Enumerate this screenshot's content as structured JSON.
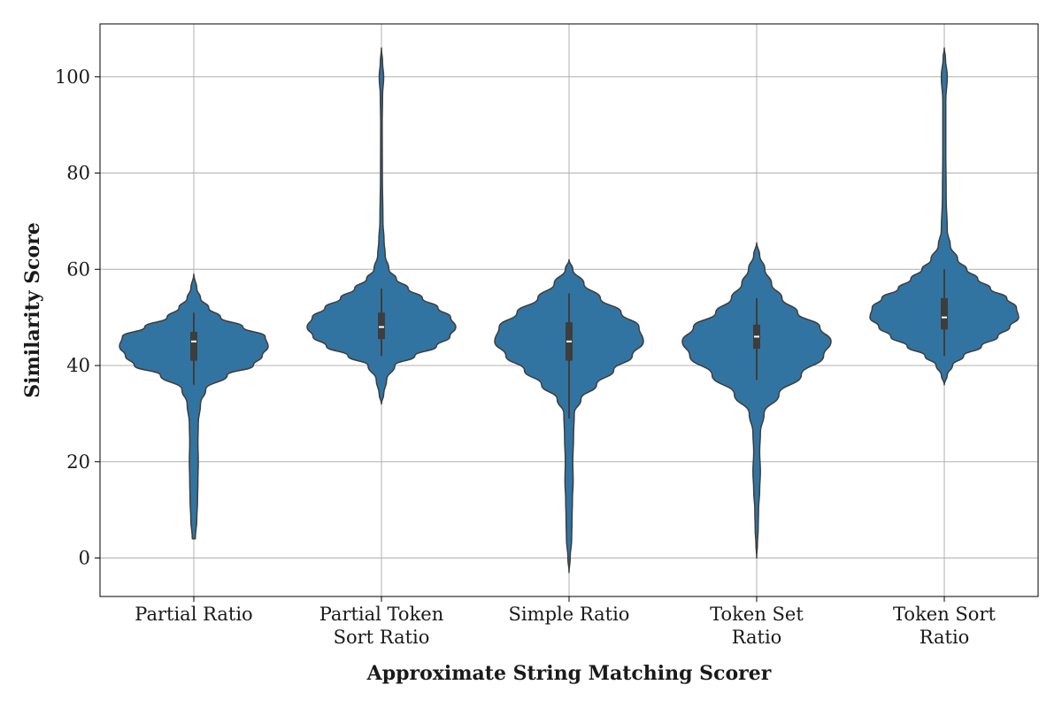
{
  "chart_data": {
    "type": "violin",
    "title": "",
    "xlabel": "Approximate String Matching Scorer",
    "ylabel": "Similarity Score",
    "ylim": [
      -8,
      111
    ],
    "yticks": [
      0,
      20,
      40,
      60,
      80,
      100
    ],
    "grid": true,
    "legend": "none",
    "color": "#3274a1",
    "categories": [
      {
        "label_lines": [
          "Partial Ratio"
        ],
        "median": 45,
        "q1": 41,
        "q3": 47,
        "whisker_low": 36,
        "whisker_high": 51,
        "density": [
          [
            4,
            0.02
          ],
          [
            8,
            0.04
          ],
          [
            12,
            0.05
          ],
          [
            16,
            0.055
          ],
          [
            20,
            0.06
          ],
          [
            24,
            0.055
          ],
          [
            28,
            0.06
          ],
          [
            32,
            0.09
          ],
          [
            35,
            0.16
          ],
          [
            38,
            0.45
          ],
          [
            40,
            0.8
          ],
          [
            42,
            0.92
          ],
          [
            44,
            1.0
          ],
          [
            46,
            0.96
          ],
          [
            48,
            0.66
          ],
          [
            50,
            0.36
          ],
          [
            52,
            0.2
          ],
          [
            54,
            0.09
          ],
          [
            56,
            0.04
          ],
          [
            59,
            0.0
          ]
        ]
      },
      {
        "label_lines": [
          "Partial Token",
          "Sort Ratio"
        ],
        "median": 48,
        "q1": 45.5,
        "q3": 51,
        "whisker_low": 42,
        "whisker_high": 56,
        "density": [
          [
            32,
            0.0
          ],
          [
            34,
            0.03
          ],
          [
            37,
            0.07
          ],
          [
            40,
            0.18
          ],
          [
            42,
            0.45
          ],
          [
            44,
            0.74
          ],
          [
            46,
            0.92
          ],
          [
            48,
            1.0
          ],
          [
            50,
            0.93
          ],
          [
            52,
            0.76
          ],
          [
            54,
            0.55
          ],
          [
            56,
            0.36
          ],
          [
            58,
            0.2
          ],
          [
            60,
            0.1
          ],
          [
            63,
            0.05
          ],
          [
            66,
            0.035
          ],
          [
            70,
            0.02
          ],
          [
            80,
            0.012
          ],
          [
            90,
            0.01
          ],
          [
            96,
            0.015
          ],
          [
            100,
            0.03
          ],
          [
            103,
            0.015
          ],
          [
            106,
            0.0
          ]
        ]
      },
      {
        "label_lines": [
          "Simple Ratio"
        ],
        "median": 45,
        "q1": 41,
        "q3": 49,
        "whisker_low": 29,
        "whisker_high": 55,
        "density": [
          [
            -3,
            0.0
          ],
          [
            0,
            0.015
          ],
          [
            4,
            0.035
          ],
          [
            8,
            0.04
          ],
          [
            12,
            0.045
          ],
          [
            16,
            0.055
          ],
          [
            20,
            0.05
          ],
          [
            25,
            0.06
          ],
          [
            30,
            0.07
          ],
          [
            33,
            0.16
          ],
          [
            36,
            0.37
          ],
          [
            39,
            0.6
          ],
          [
            42,
            0.85
          ],
          [
            45,
            1.0
          ],
          [
            48,
            0.94
          ],
          [
            51,
            0.7
          ],
          [
            54,
            0.42
          ],
          [
            57,
            0.2
          ],
          [
            60,
            0.05
          ],
          [
            62,
            0.0
          ]
        ]
      },
      {
        "label_lines": [
          "Token Set",
          "Ratio"
        ],
        "median": 46,
        "q1": 43.5,
        "q3": 48.5,
        "whisker_low": 37,
        "whisker_high": 54,
        "density": [
          [
            0,
            0.0
          ],
          [
            3,
            0.01
          ],
          [
            6,
            0.02
          ],
          [
            10,
            0.025
          ],
          [
            14,
            0.04
          ],
          [
            18,
            0.05
          ],
          [
            22,
            0.04
          ],
          [
            26,
            0.05
          ],
          [
            30,
            0.1
          ],
          [
            34,
            0.3
          ],
          [
            38,
            0.6
          ],
          [
            42,
            0.9
          ],
          [
            45,
            1.0
          ],
          [
            48,
            0.85
          ],
          [
            51,
            0.55
          ],
          [
            54,
            0.34
          ],
          [
            57,
            0.2
          ],
          [
            60,
            0.11
          ],
          [
            63,
            0.04
          ],
          [
            65.5,
            0.0
          ]
        ]
      },
      {
        "label_lines": [
          "Token Sort",
          "Ratio"
        ],
        "median": 50,
        "q1": 47.5,
        "q3": 54,
        "whisker_low": 42,
        "whisker_high": 60,
        "density": [
          [
            36,
            0.0
          ],
          [
            38,
            0.04
          ],
          [
            40,
            0.11
          ],
          [
            42,
            0.26
          ],
          [
            44,
            0.5
          ],
          [
            46,
            0.72
          ],
          [
            48,
            0.88
          ],
          [
            50,
            1.0
          ],
          [
            52,
            0.97
          ],
          [
            54,
            0.84
          ],
          [
            56,
            0.62
          ],
          [
            58,
            0.45
          ],
          [
            60,
            0.3
          ],
          [
            62,
            0.18
          ],
          [
            65,
            0.08
          ],
          [
            68,
            0.04
          ],
          [
            75,
            0.025
          ],
          [
            85,
            0.02
          ],
          [
            95,
            0.02
          ],
          [
            100,
            0.04
          ],
          [
            104,
            0.015
          ],
          [
            106,
            0.0
          ]
        ]
      }
    ]
  }
}
